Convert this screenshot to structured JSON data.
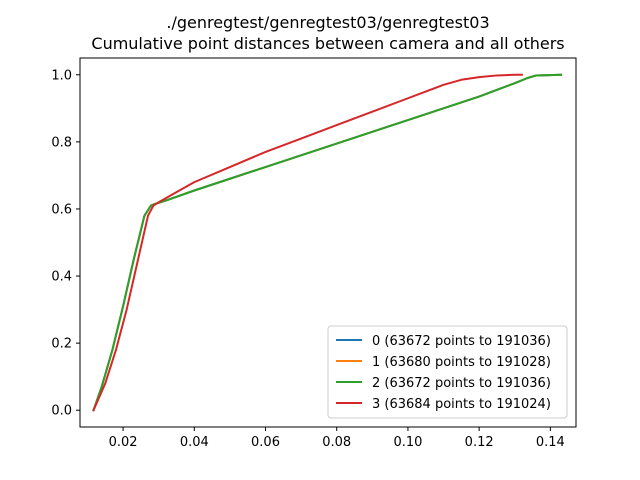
{
  "chart_data": {
    "type": "line",
    "title": "./genregtest/genregtest03/genregtest03",
    "subtitle": "Cumulative point distances between camera and all others",
    "xlabel": "",
    "ylabel": "",
    "xlim": [
      0.0079,
      0.1472
    ],
    "ylim": [
      -0.05,
      1.05
    ],
    "xticks": [
      0.02,
      0.04,
      0.06,
      0.08,
      0.1,
      0.12,
      0.14
    ],
    "xtick_labels": [
      "0.02",
      "0.04",
      "0.06",
      "0.08",
      "0.10",
      "0.12",
      "0.14"
    ],
    "yticks": [
      0.0,
      0.2,
      0.4,
      0.6,
      0.8,
      1.0
    ],
    "ytick_labels": [
      "0.0",
      "0.2",
      "0.4",
      "0.6",
      "0.8",
      "1.0"
    ],
    "grid": false,
    "legend_position": "lower-right",
    "series": [
      {
        "name": "0 (63672 points to 191036)",
        "color": "#1f77b4",
        "x": [
          0.0117,
          0.014,
          0.017,
          0.02,
          0.023,
          0.026,
          0.0278,
          0.029,
          0.032,
          0.04,
          0.05,
          0.06,
          0.07,
          0.08,
          0.09,
          0.1,
          0.11,
          0.12,
          0.13,
          0.1335,
          0.136,
          0.143
        ],
        "y": [
          0.0,
          0.07,
          0.18,
          0.31,
          0.45,
          0.58,
          0.61,
          0.615,
          0.625,
          0.655,
          0.69,
          0.725,
          0.76,
          0.795,
          0.83,
          0.865,
          0.9,
          0.935,
          0.975,
          0.99,
          0.998,
          1.0
        ]
      },
      {
        "name": "1 (63680 points to 191028)",
        "color": "#ff7f0e",
        "x": [
          0.0117,
          0.014,
          0.017,
          0.02,
          0.023,
          0.026,
          0.0278,
          0.029,
          0.032,
          0.04,
          0.05,
          0.06,
          0.07,
          0.08,
          0.09,
          0.1,
          0.11,
          0.12,
          0.13,
          0.1335,
          0.136,
          0.143
        ],
        "y": [
          0.0,
          0.07,
          0.18,
          0.31,
          0.45,
          0.58,
          0.61,
          0.615,
          0.625,
          0.655,
          0.69,
          0.725,
          0.76,
          0.795,
          0.83,
          0.865,
          0.9,
          0.935,
          0.975,
          0.99,
          0.998,
          1.0
        ]
      },
      {
        "name": "2 (63672 points to 191036)",
        "color": "#2ca02c",
        "x": [
          0.0117,
          0.014,
          0.017,
          0.02,
          0.023,
          0.026,
          0.0278,
          0.029,
          0.032,
          0.04,
          0.05,
          0.06,
          0.07,
          0.08,
          0.09,
          0.1,
          0.11,
          0.12,
          0.13,
          0.1335,
          0.136,
          0.143
        ],
        "y": [
          0.0,
          0.07,
          0.18,
          0.31,
          0.45,
          0.58,
          0.61,
          0.615,
          0.625,
          0.655,
          0.69,
          0.725,
          0.76,
          0.795,
          0.83,
          0.865,
          0.9,
          0.935,
          0.975,
          0.99,
          0.998,
          1.0
        ]
      },
      {
        "name": "3 (63684 points to 191024)",
        "color": "#d62728",
        "x": [
          0.0117,
          0.015,
          0.018,
          0.021,
          0.024,
          0.027,
          0.0285,
          0.03,
          0.035,
          0.04,
          0.05,
          0.06,
          0.07,
          0.08,
          0.09,
          0.1,
          0.105,
          0.11,
          0.115,
          0.12,
          0.125,
          0.13,
          0.132
        ],
        "y": [
          0.0,
          0.08,
          0.18,
          0.3,
          0.44,
          0.58,
          0.61,
          0.62,
          0.65,
          0.68,
          0.725,
          0.77,
          0.81,
          0.85,
          0.89,
          0.93,
          0.95,
          0.97,
          0.985,
          0.993,
          0.998,
          1.0,
          1.0
        ]
      }
    ]
  }
}
